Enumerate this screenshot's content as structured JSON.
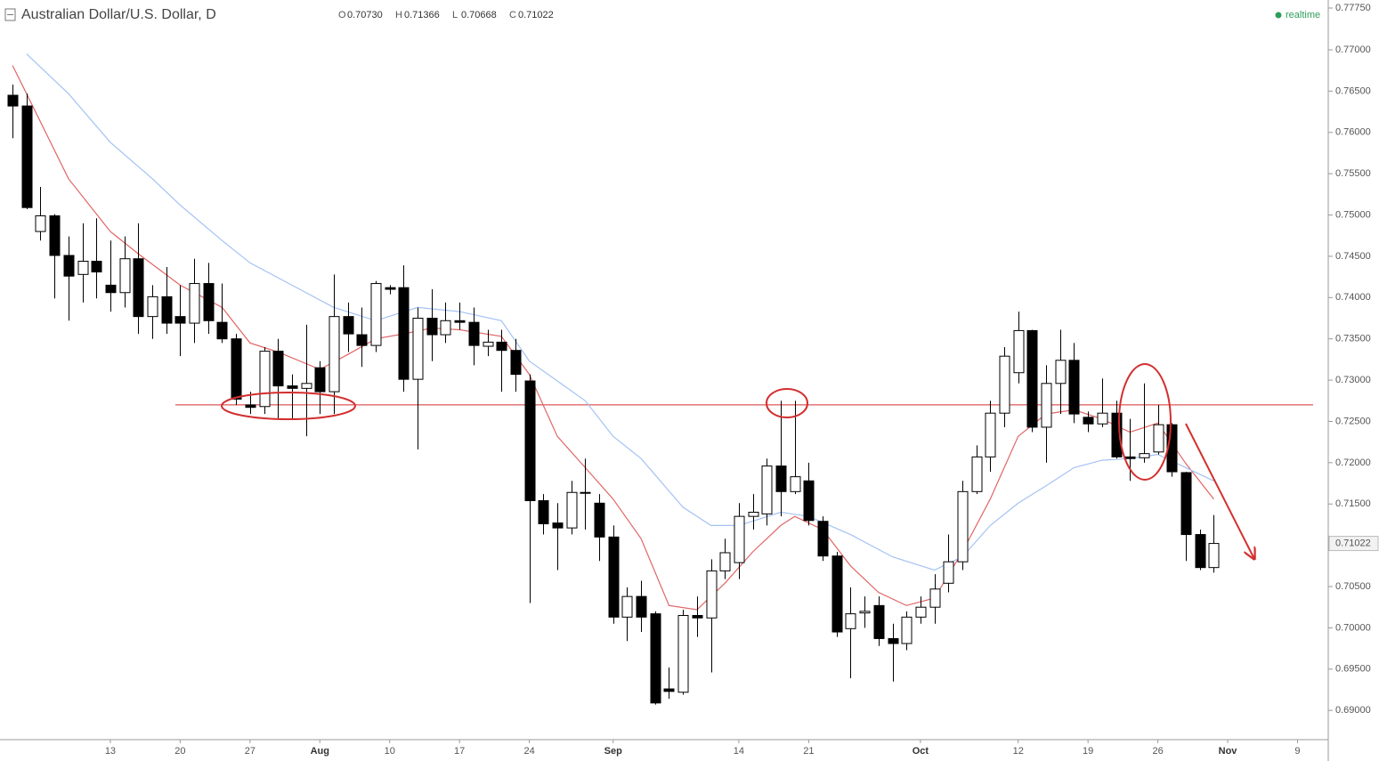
{
  "chart_data": {
    "type": "candlestick",
    "title": "Australian Dollar/U.S. Dollar, D",
    "ohlc_header": [
      {
        "name": "O",
        "value": 0.7073,
        "label": "0.70730"
      },
      {
        "name": "H",
        "value": 0.71366,
        "label": "0.71366"
      },
      {
        "name": "L",
        "value": 0.70668,
        "label": "0.70668"
      },
      {
        "name": "C",
        "value": 0.71022,
        "label": "0.71022"
      }
    ],
    "status": "realtime",
    "up_color": "#ffffff",
    "down_color": "#000000",
    "open": [
      0.7645,
      0.7632,
      0.748,
      0.7499,
      0.7451,
      0.7428,
      0.7444,
      0.7415,
      0.7406,
      0.7447,
      0.7377,
      0.7401,
      0.7377,
      0.7369,
      0.7417,
      0.737,
      0.735,
      0.727,
      0.7268,
      0.7335,
      0.7293,
      0.729,
      0.7315,
      0.7286,
      0.7377,
      0.7355,
      0.7342,
      0.7412,
      0.7412,
      0.7301,
      0.7375,
      0.7355,
      0.7372,
      0.737,
      0.7341,
      0.7346,
      0.7336,
      0.7299,
      0.7154,
      0.7127,
      0.7121,
      0.7164,
      0.7151,
      0.711,
      0.7013,
      0.7038,
      0.7017,
      0.6926,
      0.6922,
      0.7015,
      0.7012,
      0.7069,
      0.7079,
      0.7135,
      0.7138,
      0.7196,
      0.7165,
      0.7178,
      0.7129,
      0.7087,
      0.6999,
      0.7018,
      0.7027,
      0.6987,
      0.6981,
      0.7013,
      0.7025,
      0.7054,
      0.708,
      0.7165,
      0.7207,
      0.726,
      0.7309,
      0.736,
      0.7243,
      0.7296,
      0.7324,
      0.7255,
      0.7247,
      0.726,
      0.7207,
      0.7206,
      0.7213,
      0.7246,
      0.7188,
      0.7113,
      0.7073
    ],
    "high": [
      0.7658,
      0.7647,
      0.7534,
      0.7501,
      0.7474,
      0.749,
      0.7496,
      0.7469,
      0.7474,
      0.749,
      0.7415,
      0.7437,
      0.7415,
      0.7447,
      0.7442,
      0.7417,
      0.7356,
      0.7286,
      0.734,
      0.735,
      0.7307,
      0.7367,
      0.7323,
      0.7428,
      0.7394,
      0.7388,
      0.742,
      0.7415,
      0.7439,
      0.7388,
      0.741,
      0.7394,
      0.7394,
      0.7388,
      0.7361,
      0.7361,
      0.735,
      0.7307,
      0.7162,
      0.7151,
      0.7178,
      0.7205,
      0.7162,
      0.7124,
      0.7049,
      0.7057,
      0.702,
      0.6952,
      0.7022,
      0.7038,
      0.7083,
      0.7108,
      0.7151,
      0.7162,
      0.7205,
      0.7275,
      0.7275,
      0.72,
      0.7135,
      0.7092,
      0.7049,
      0.7038,
      0.7038,
      0.7005,
      0.702,
      0.7038,
      0.7065,
      0.7113,
      0.7178,
      0.7221,
      0.7275,
      0.734,
      0.7383,
      0.7361,
      0.7318,
      0.7361,
      0.7345,
      0.7262,
      0.7302,
      0.7275,
      0.7253,
      0.7296,
      0.727,
      0.7248,
      0.7189,
      0.7119,
      0.71366
    ],
    "low": [
      0.7593,
      0.7507,
      0.7469,
      0.7399,
      0.7372,
      0.7394,
      0.7399,
      0.7383,
      0.7388,
      0.7356,
      0.735,
      0.7356,
      0.7329,
      0.7345,
      0.7356,
      0.7345,
      0.727,
      0.7259,
      0.7259,
      0.7253,
      0.7253,
      0.7232,
      0.7259,
      0.7259,
      0.7334,
      0.7316,
      0.7334,
      0.7404,
      0.7286,
      0.7216,
      0.7323,
      0.7345,
      0.7361,
      0.7318,
      0.7329,
      0.7286,
      0.7286,
      0.703,
      0.7113,
      0.707,
      0.7113,
      0.7119,
      0.7081,
      0.7005,
      0.6984,
      0.6995,
      0.6907,
      0.6914,
      0.6919,
      0.6989,
      0.6946,
      0.7059,
      0.7059,
      0.7119,
      0.7124,
      0.7135,
      0.7162,
      0.7124,
      0.7081,
      0.6989,
      0.6939,
      0.7,
      0.6978,
      0.6935,
      0.6973,
      0.7005,
      0.7005,
      0.7043,
      0.707,
      0.7162,
      0.7189,
      0.7243,
      0.7296,
      0.7237,
      0.72,
      0.7259,
      0.7248,
      0.7237,
      0.7243,
      0.7205,
      0.7178,
      0.72,
      0.721,
      0.7183,
      0.7081,
      0.707,
      0.70668
    ],
    "close": [
      0.7632,
      0.7509,
      0.7499,
      0.7451,
      0.7426,
      0.7444,
      0.7431,
      0.7406,
      0.7447,
      0.7377,
      0.7401,
      0.7369,
      0.7369,
      0.7417,
      0.7372,
      0.735,
      0.7277,
      0.7267,
      0.7335,
      0.7293,
      0.729,
      0.7296,
      0.7286,
      0.7377,
      0.7356,
      0.7342,
      0.7417,
      0.741,
      0.7301,
      0.7375,
      0.7355,
      0.7372,
      0.737,
      0.7342,
      0.7346,
      0.7336,
      0.7307,
      0.7154,
      0.7126,
      0.7121,
      0.7164,
      0.7163,
      0.711,
      0.7013,
      0.7038,
      0.7013,
      0.6909,
      0.6923,
      0.7015,
      0.7012,
      0.7069,
      0.7091,
      0.7135,
      0.714,
      0.7196,
      0.7165,
      0.7183,
      0.713,
      0.7087,
      0.6995,
      0.7017,
      0.702,
      0.6987,
      0.6981,
      0.7013,
      0.7025,
      0.7047,
      0.708,
      0.7165,
      0.7207,
      0.726,
      0.7329,
      0.736,
      0.7243,
      0.7296,
      0.7324,
      0.7259,
      0.7247,
      0.726,
      0.7207,
      0.7205,
      0.7211,
      0.7246,
      0.7189,
      0.7113,
      0.7073,
      0.71022
    ],
    "overlays": [
      {
        "color": "#e06666",
        "x": [
          0,
          1,
          4,
          7,
          9,
          12,
          15,
          17,
          19,
          22,
          24,
          26,
          28,
          30,
          32,
          35,
          37,
          39,
          41,
          43,
          45,
          47,
          49,
          51,
          53,
          55,
          56,
          58,
          60,
          62,
          64,
          66,
          68,
          70,
          72,
          74,
          76,
          78,
          80,
          82,
          84,
          86
        ],
        "values": [
          0.7681,
          0.7647,
          0.7544,
          0.748,
          0.7453,
          0.7415,
          0.7388,
          0.7345,
          0.7334,
          0.7313,
          0.7331,
          0.735,
          0.7356,
          0.7363,
          0.7361,
          0.7353,
          0.7307,
          0.7232,
          0.7194,
          0.7156,
          0.7108,
          0.7027,
          0.7022,
          0.7054,
          0.7092,
          0.7124,
          0.7135,
          0.7119,
          0.7075,
          0.7043,
          0.7027,
          0.7036,
          0.7092,
          0.7156,
          0.7232,
          0.7259,
          0.7264,
          0.7253,
          0.7237,
          0.7248,
          0.7199,
          0.7156
        ]
      },
      {
        "color": "#a4c2f4",
        "x": [
          1,
          4,
          7,
          10,
          12,
          15,
          17,
          20,
          23,
          26,
          29,
          32,
          35,
          37,
          41,
          43,
          45,
          48,
          50,
          52,
          55,
          57,
          60,
          63,
          66,
          68,
          70,
          72,
          74,
          76,
          78,
          80,
          82,
          84,
          86
        ],
        "values": [
          0.7695,
          0.7647,
          0.7588,
          0.7544,
          0.7512,
          0.7469,
          0.7442,
          0.7415,
          0.7388,
          0.7372,
          0.7388,
          0.7383,
          0.7372,
          0.7323,
          0.7275,
          0.7232,
          0.7205,
          0.7146,
          0.7124,
          0.7124,
          0.714,
          0.7135,
          0.7113,
          0.7086,
          0.707,
          0.7086,
          0.7124,
          0.7151,
          0.7172,
          0.7194,
          0.7203,
          0.7205,
          0.721,
          0.7194,
          0.7178
        ]
      }
    ],
    "level": {
      "value": 0.727,
      "color": "#d32f2f"
    },
    "xlim": [
      -0.9,
      94.2
    ],
    "ylim": [
      0.68646,
      0.7776
    ],
    "xticks": [
      {
        "value": 7,
        "label": "13"
      },
      {
        "value": 12,
        "label": "20"
      },
      {
        "value": 17,
        "label": "27"
      },
      {
        "value": 22,
        "label": "Aug"
      },
      {
        "value": 27,
        "label": "10"
      },
      {
        "value": 32,
        "label": "17"
      },
      {
        "value": 37,
        "label": "24"
      },
      {
        "value": 43,
        "label": "Sep"
      },
      {
        "value": 52,
        "label": "14"
      },
      {
        "value": 57,
        "label": "21"
      },
      {
        "value": 65,
        "label": "Oct"
      },
      {
        "value": 72,
        "label": "12"
      },
      {
        "value": 77,
        "label": "19"
      },
      {
        "value": 82,
        "label": "26"
      },
      {
        "value": 87,
        "label": "Nov"
      },
      {
        "value": 92,
        "label": "9"
      }
    ],
    "yticks": [
      {
        "value": 0.7775,
        "label": "0.77750"
      },
      {
        "value": 0.77,
        "label": "0.77000"
      },
      {
        "value": 0.765,
        "label": "0.76500"
      },
      {
        "value": 0.76,
        "label": "0.76000"
      },
      {
        "value": 0.755,
        "label": "0.75500"
      },
      {
        "value": 0.75,
        "label": "0.75000"
      },
      {
        "value": 0.745,
        "label": "0.74500"
      },
      {
        "value": 0.74,
        "label": "0.74000"
      },
      {
        "value": 0.735,
        "label": "0.73500"
      },
      {
        "value": 0.73,
        "label": "0.73000"
      },
      {
        "value": 0.725,
        "label": "0.72500"
      },
      {
        "value": 0.72,
        "label": "0.72000"
      },
      {
        "value": 0.715,
        "label": "0.71500"
      },
      {
        "value": 0.705,
        "label": "0.70500"
      },
      {
        "value": 0.7,
        "label": "0.70000"
      },
      {
        "value": 0.695,
        "label": "0.69500"
      },
      {
        "value": 0.69,
        "label": "0.69000"
      }
    ]
  }
}
